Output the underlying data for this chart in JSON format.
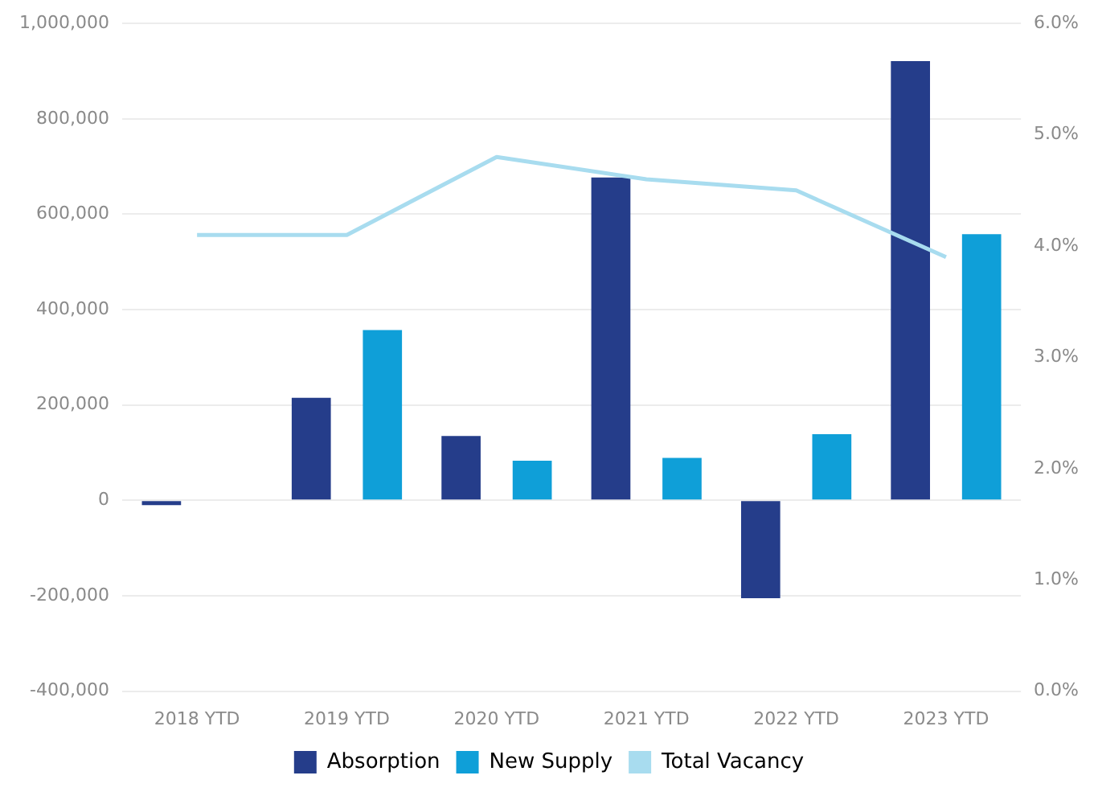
{
  "chart_data": {
    "type": "bar",
    "categories": [
      "2018 YTD",
      "2019 YTD",
      "2020 YTD",
      "2021 YTD",
      "2022 YTD",
      "2023 YTD"
    ],
    "series": [
      {
        "name": "Absorption",
        "color": "#253d8a",
        "values": [
          -10000,
          215000,
          135000,
          677000,
          -205000,
          921000
        ]
      },
      {
        "name": "New Supply",
        "color": "#0f9fd8",
        "values": [
          null,
          357000,
          83000,
          89000,
          139000,
          558000
        ]
      },
      {
        "name": "Total Vacancy",
        "type": "line",
        "axis": "y2",
        "color": "#a8dcef",
        "values": [
          4.1,
          4.1,
          4.8,
          4.6,
          4.5,
          3.9
        ]
      }
    ],
    "ylim": [
      -400000,
      1000000
    ],
    "yticks": [
      {
        "value": -400000,
        "label": "-400,000"
      },
      {
        "value": -200000,
        "label": "-200,000"
      },
      0,
      {
        "value": 200000,
        "label": "200,000"
      },
      {
        "value": 400000,
        "label": "400,000"
      },
      {
        "value": 600000,
        "label": "600,000"
      },
      {
        "value": 800000,
        "label": "800,000"
      },
      {
        "value": 1000000,
        "label": "1,000,000"
      }
    ],
    "y2lim": [
      0,
      6
    ],
    "y2ticks": [
      {
        "value": 0,
        "label": "0.0%"
      },
      {
        "value": 1,
        "label": "1.0%"
      },
      {
        "value": 2,
        "label": "2.0%"
      },
      {
        "value": 3,
        "label": "3.0%"
      },
      {
        "value": 4,
        "label": "4.0%"
      },
      {
        "value": 5,
        "label": "5.0%"
      },
      {
        "value": 6,
        "label": "6.0%"
      }
    ],
    "grid": "y",
    "legend": "bottom",
    "marker": "none",
    "line_style": "solid"
  }
}
